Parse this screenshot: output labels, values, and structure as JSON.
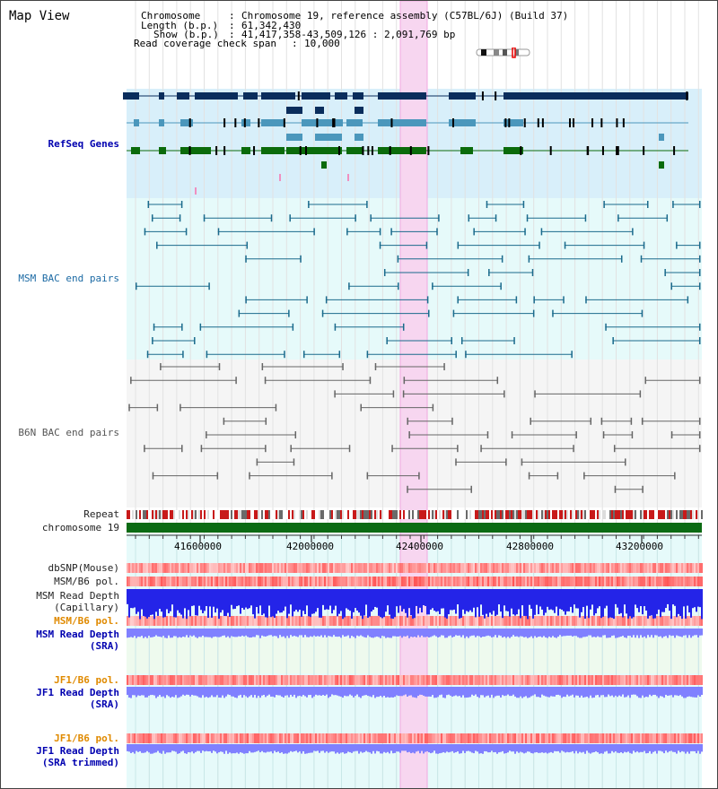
{
  "title": "Map View",
  "header": {
    "chromosome_key": "Chromosome",
    "chromosome_val": "Chromosome 19, reference assembly (C57BL/6J) (Build 37)",
    "length_key": "Length (b.p.)",
    "length_val": "61,342,430",
    "show_key": "Show (b.p.)",
    "show_val": "41,417,358-43,509,126 : 2,091,769 bp",
    "span_key": "Read coverage check span",
    "span_val": "10,000"
  },
  "tracks": {
    "refseq": "RefSeq Genes",
    "msm_bac": "MSM BAC end pairs",
    "b6n_bac": "B6N BAC end pairs",
    "repeat": "Repeat",
    "chromosome": "chromosome 19",
    "dbsnp": "dbSNP(Mouse)",
    "msm_b6_pol_1": "MSM/B6 pol.",
    "msm_depth_cap_1": "MSM Read Depth",
    "msm_depth_cap_2": "(Capillary)",
    "msm_b6_pol_2": "MSM/B6 pol.",
    "msm_depth_sra_1": "MSM Read Depth",
    "msm_depth_sra_2": "(SRA)",
    "jf1_pol_1": "JF1/B6 pol.",
    "jf1_depth_1": "JF1 Read Depth",
    "jf1_depth_2": "(SRA)",
    "jf1_pol_2": "JF1/B6 pol.",
    "jf1_trim_1": "JF1 Read Depth",
    "jf1_trim_2": "(SRA trimmed)"
  },
  "axis": {
    "ticks": [
      "41600000",
      "42000000",
      "42400000",
      "42800000",
      "43200000"
    ]
  },
  "colors": {
    "refseq_bg": "#d8effa",
    "msm_bg": "#e6fafa",
    "b6n_bg": "#f5f5f5",
    "highlight": "#f7d6f0",
    "dark_gene": "#0a2d5c",
    "mid_gene": "#4b97bc",
    "green_gene": "#0b6b0b",
    "chrom_bar": "#0c6b14",
    "depth_blue": "#2424e8",
    "depth_light": "#8080ff"
  }
}
